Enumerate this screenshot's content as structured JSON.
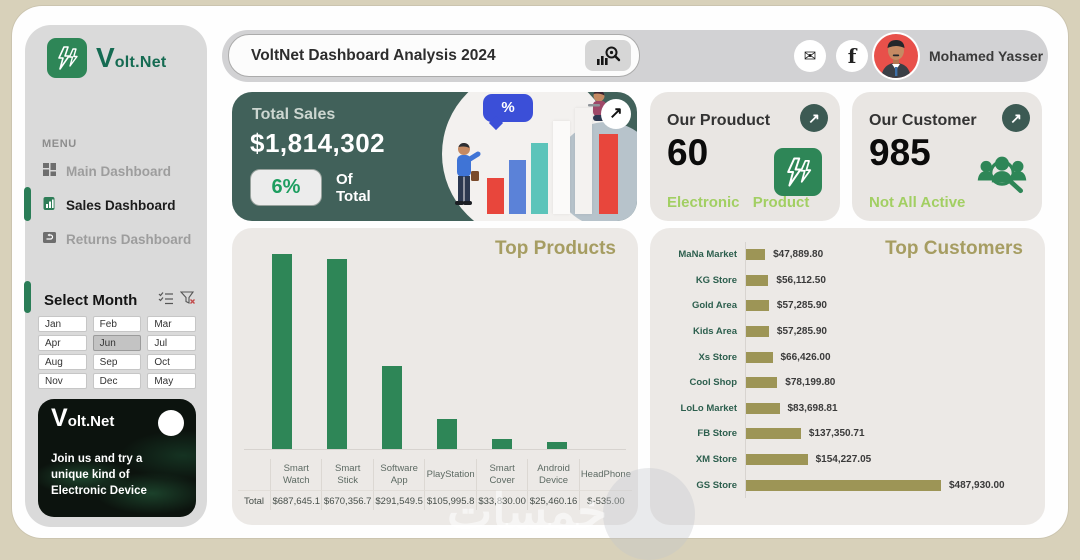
{
  "watermark": "خمسات",
  "colors": {
    "background_tan": "#d8d1ba",
    "brand_green": "#2e8657",
    "accent_green": "#2a7d57",
    "dark_card_green": "#41615a",
    "light_green": "#a2cf63",
    "khaki_title": "#a69d62",
    "khaki_bar": "#9d9556",
    "badge_green": "#1d9e60",
    "avatar_red": "#e8504a"
  },
  "icons": {
    "trend_arrow": "↗",
    "mail": "✉",
    "facebook": "f",
    "percent": "%"
  },
  "sidebar": {
    "logo_v": "V",
    "logo_rest": "olt.Net",
    "menu_label": "MENU",
    "menu_items": [
      {
        "label": "Main Dashboard",
        "active": false
      },
      {
        "label": "Sales Dashboard",
        "active": true
      },
      {
        "label": "Returns Dashboard",
        "active": false
      }
    ],
    "slicer": {
      "title": "Select Month",
      "months": [
        "Jan",
        "Feb",
        "Mar",
        "Apr",
        "Jun",
        "Jul",
        "Aug",
        "Sep",
        "Oct",
        "Nov",
        "Dec",
        "May"
      ],
      "selected": "Jun"
    },
    "promo": {
      "title_v": "V",
      "title_rest": "olt.Net",
      "text": "Join us and try a unique kind of Electronic Device"
    }
  },
  "topbar": {
    "title": "VoltNet Dashboard Analysis 2024",
    "user": "Mohamed Yasser"
  },
  "stats": {
    "total_sales": {
      "label": "Total Sales",
      "value": "$1,814,302",
      "badge": "6%",
      "of_line1": "Of",
      "of_line2": "Total"
    },
    "product": {
      "title": "Our Prouduct",
      "value": "60",
      "subtitle": "Electronic Product"
    },
    "customer": {
      "title": "Our Customer",
      "value": "985",
      "subtitle": "Not All Active"
    }
  },
  "chart_data": [
    {
      "type": "bar",
      "orientation": "vertical",
      "title": "Top Products",
      "row_label": "Total",
      "categories": [
        "Smart Watch",
        "Smart Stick",
        "Software App",
        "PlayStation",
        "Smart Cover",
        "Android Device",
        "HeadPhone"
      ],
      "values": [
        687645.1,
        670356.7,
        291549.5,
        105995.8,
        33830.0,
        25460.16,
        -535.0
      ],
      "value_labels": [
        "$687,645.1",
        "$670,356.7",
        "$291,549.5",
        "$105,995.8",
        "$33,830.00",
        "$25,460.16",
        "$-535.00"
      ],
      "bar_color": "#2e8657",
      "xlabel": "",
      "ylabel": "",
      "ylim": [
        0,
        700000
      ],
      "grid": false,
      "legend_position": "none"
    },
    {
      "type": "bar",
      "orientation": "horizontal",
      "title": "Top Customers",
      "categories": [
        "MaNa Market",
        "KG Store",
        "Gold Area",
        "Kids Area",
        "Xs Store",
        "Cool Shop",
        "LoLo Market",
        "FB Store",
        "XM Store",
        "GS Store"
      ],
      "values": [
        47889.8,
        56112.5,
        57285.9,
        57285.9,
        66426.0,
        78199.8,
        83698.81,
        137350.71,
        154227.05,
        487930.0
      ],
      "value_labels": [
        "$47,889.80",
        "$56,112.50",
        "$57,285.90",
        "$57,285.90",
        "$66,426.00",
        "$78,199.80",
        "$83,698.81",
        "$137,350.71",
        "$154,227.05",
        "$487,930.00"
      ],
      "bar_color": "#9d9556",
      "xlabel": "",
      "ylabel": "",
      "xlim": [
        0,
        500000
      ],
      "grid": false,
      "legend_position": "none"
    }
  ]
}
